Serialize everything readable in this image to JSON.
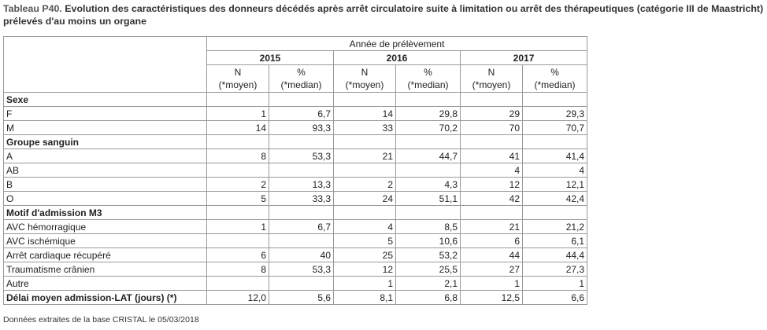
{
  "title": {
    "label": "Tableau P40.",
    "text": "Evolution des caractéristiques des donneurs décédés après arrêt circulatoire suite à limitation ou arrêt des thérapeutiques (catégorie III de Maastricht) prélevés d'au moins un organe"
  },
  "header": {
    "group": "Année de prélèvement",
    "years": [
      "2015",
      "2016",
      "2017"
    ],
    "n_line1": "N",
    "n_line2": "(*moyen)",
    "pct_line1": "%",
    "pct_line2": "(*median)"
  },
  "rows": [
    {
      "type": "section",
      "label": "Sexe"
    },
    {
      "type": "data",
      "label": "F",
      "values": [
        "1",
        "6,7",
        "14",
        "29,8",
        "29",
        "29,3"
      ]
    },
    {
      "type": "data",
      "label": "M",
      "values": [
        "14",
        "93,3",
        "33",
        "70,2",
        "70",
        "70,7"
      ]
    },
    {
      "type": "section",
      "label": "Groupe sanguin"
    },
    {
      "type": "data",
      "label": "A",
      "values": [
        "8",
        "53,3",
        "21",
        "44,7",
        "41",
        "41,4"
      ]
    },
    {
      "type": "data",
      "label": "AB",
      "values": [
        "",
        "",
        "",
        "",
        "4",
        "4"
      ]
    },
    {
      "type": "data",
      "label": "B",
      "values": [
        "2",
        "13,3",
        "2",
        "4,3",
        "12",
        "12,1"
      ]
    },
    {
      "type": "data",
      "label": "O",
      "values": [
        "5",
        "33,3",
        "24",
        "51,1",
        "42",
        "42,4"
      ]
    },
    {
      "type": "section",
      "label": "Motif d'admission M3"
    },
    {
      "type": "data",
      "label": "AVC hémorragique",
      "values": [
        "1",
        "6,7",
        "4",
        "8,5",
        "21",
        "21,2"
      ]
    },
    {
      "type": "data",
      "label": "AVC ischémique",
      "values": [
        "",
        "",
        "5",
        "10,6",
        "6",
        "6,1"
      ]
    },
    {
      "type": "data",
      "label": "Arrêt cardiaque récupéré",
      "values": [
        "6",
        "40",
        "25",
        "53,2",
        "44",
        "44,4"
      ]
    },
    {
      "type": "data",
      "label": "Traumatisme crânien",
      "values": [
        "8",
        "53,3",
        "12",
        "25,5",
        "27",
        "27,3"
      ]
    },
    {
      "type": "data",
      "label": "Autre",
      "values": [
        "",
        "",
        "1",
        "2,1",
        "1",
        "1"
      ]
    },
    {
      "type": "summary",
      "label": "Délai moyen admission-LAT (jours) (*)",
      "values": [
        "12,0",
        "5,6",
        "8,1",
        "6,8",
        "12,5",
        "6,6"
      ]
    }
  ],
  "footnote": "Données extraites de la base CRISTAL le 05/03/2018"
}
